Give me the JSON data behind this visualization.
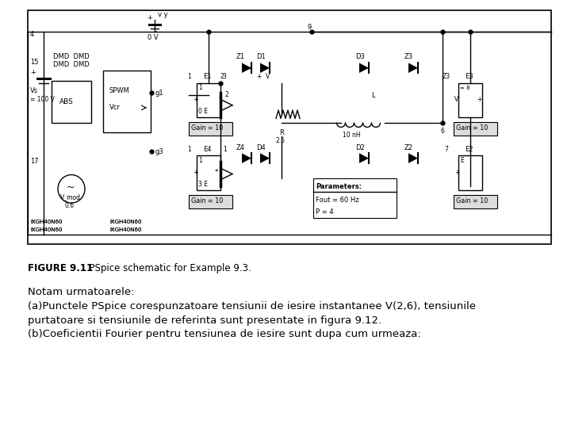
{
  "figure_caption_bold": "FIGURE 9.11",
  "figure_caption_normal": "  PSpice schematic for Example 9.3.",
  "text_lines": [
    "Notam urmatoarele:",
    "(a)Punctele PSpice corespunzatoare tensiunii de iesire instantanee V(2,6), tensiunile",
    "purtatoare si tensiunile de referinta sunt presentate in figura 9.12.",
    "(b)Coeficientii Fourier pentru tensiunea de iesire sunt dupa cum urmeaza:"
  ],
  "bg_color": "#ffffff",
  "text_color": "#000000",
  "fig_width": 7.2,
  "fig_height": 5.4,
  "dpi": 100
}
